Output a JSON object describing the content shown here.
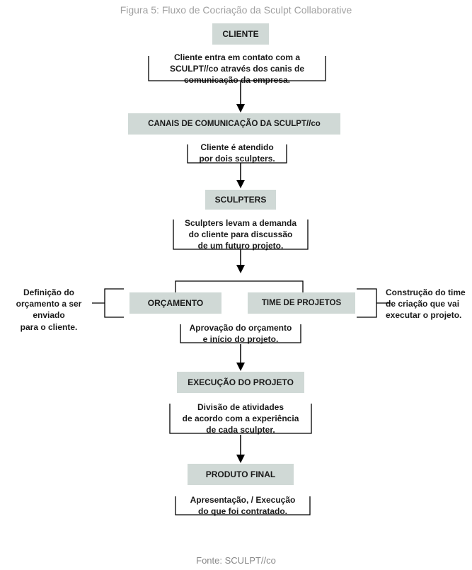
{
  "title": "Figura 5: Fluxo de Cocriação da Sculpt Collaborative",
  "footer": "Fonte: SCULPT//co",
  "colors": {
    "box_bg": "#d0d9d6",
    "text": "#1a1a1a",
    "title_gray": "#a0a0a0",
    "bg": "#ffffff",
    "stroke": "#000000"
  },
  "nodes": {
    "cliente": "CLIENTE",
    "canais": "CANAIS DE COMUNICAÇÃO DA SCULPT//co",
    "sculpters": "SCULPTERS",
    "orcamento": "ORÇAMENTO",
    "time": "TIME DE PROJETOS",
    "execucao": "EXECUÇÃO DO PROJETO",
    "produto": "PRODUTO FINAL"
  },
  "descs": {
    "d1": "Cliente entra em contato com a\nSCULPT//co através dos canis de\ncomunicação da empresa.",
    "d2": "Cliente é atendido\npor dois sculpters.",
    "d3": "Sculpters levam a demanda\ndo cliente para discussão\nde um futuro projeto.",
    "d4": "Aprovação do orçamento\ne início do projeto.",
    "d5": "Divisão de atividades\nde acordo com a experiência\nde cada sculpter.",
    "d6": "Apresentação, / Execução\ndo que foi contratado.",
    "side_left": "Definição do\norçamento a ser enviado\npara o cliente.",
    "side_right": "Construção do time\nde criação que vai\nexecutar o projeto."
  },
  "flow": {
    "type": "flowchart",
    "background_color": "#ffffff",
    "box_color": "#d0d9d6",
    "text_color": "#1a1a1a",
    "line_color": "#000000",
    "font_family": "Arial",
    "node_font_size": 12,
    "desc_font_size": 12,
    "nodes": [
      "cliente",
      "canais",
      "sculpters",
      "orcamento",
      "time",
      "execucao",
      "produto"
    ],
    "edges": [
      [
        "cliente",
        "canais"
      ],
      [
        "canais",
        "sculpters"
      ],
      [
        "sculpters",
        "orcamento"
      ],
      [
        "sculpters",
        "time"
      ],
      [
        "orcamento",
        "execucao"
      ],
      [
        "execucao",
        "produto"
      ]
    ]
  }
}
